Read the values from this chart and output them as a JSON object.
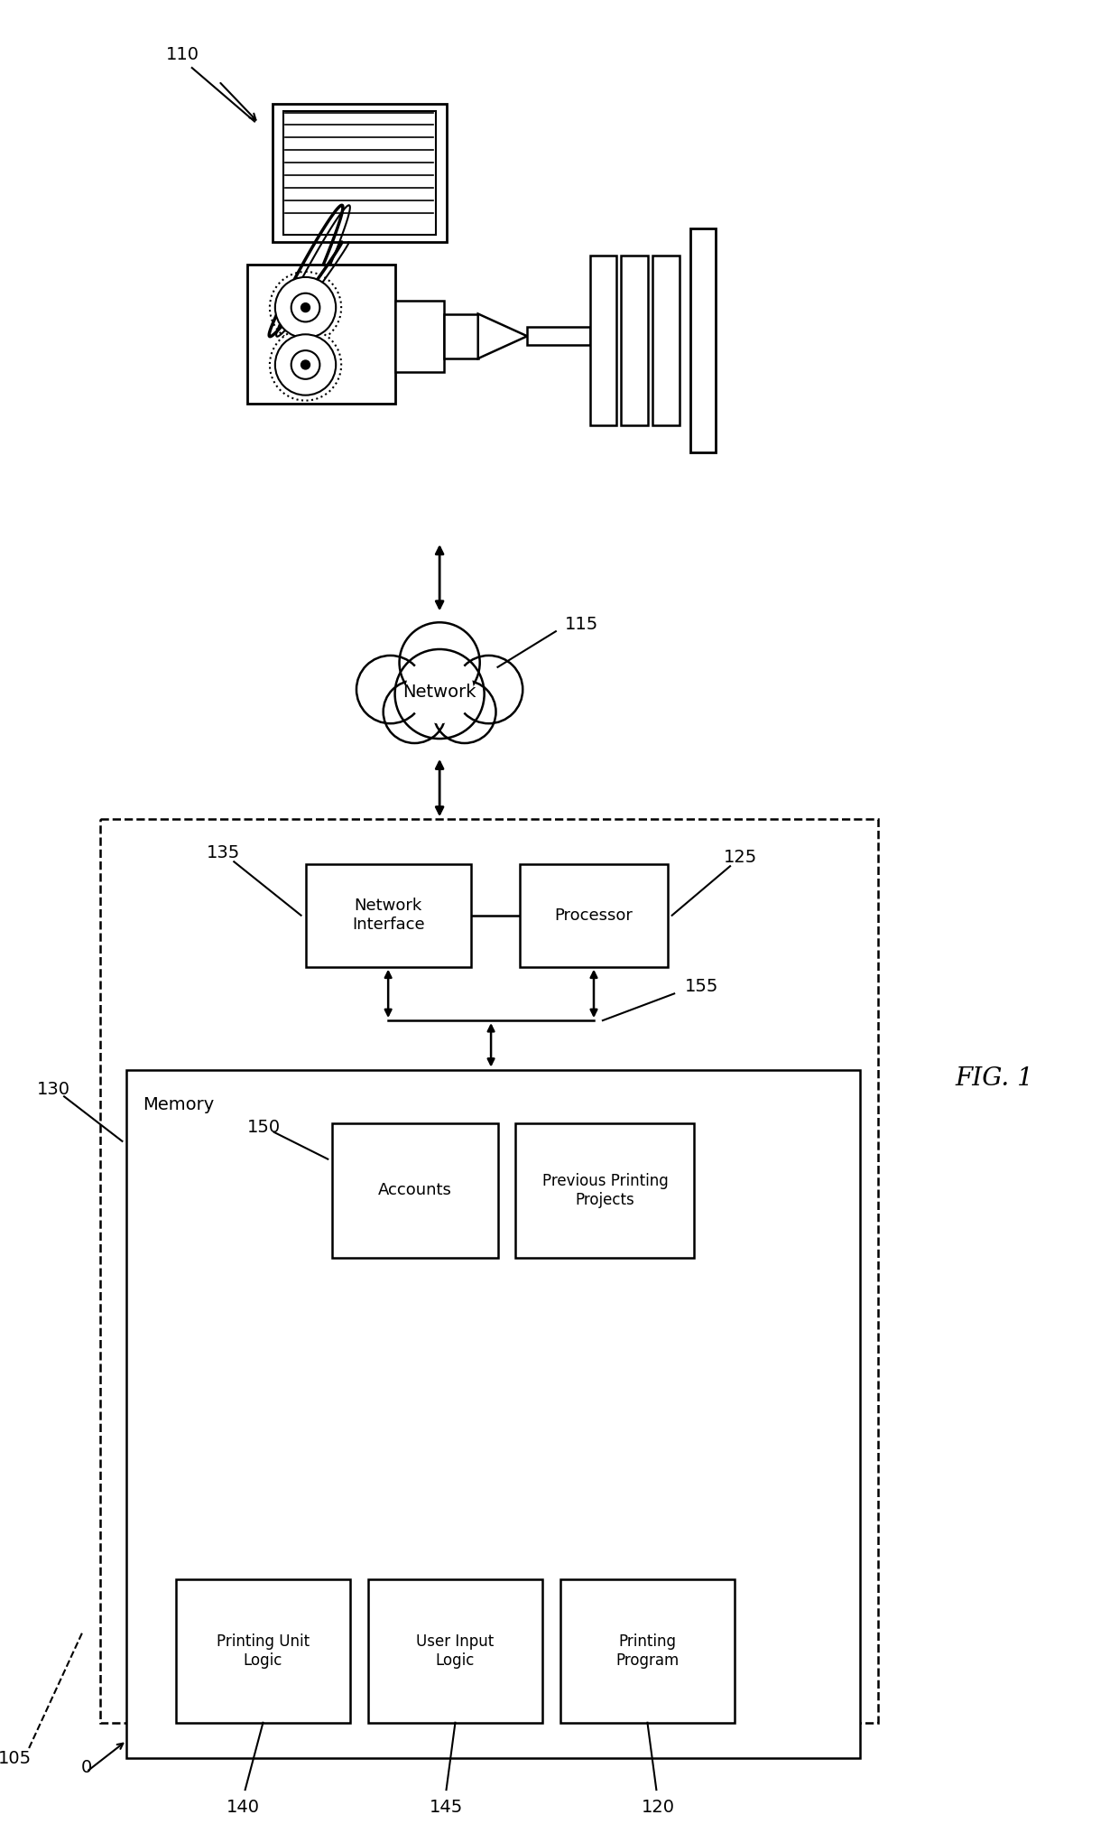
{
  "fig_label": "FIG. 1",
  "bg_color": "#ffffff",
  "line_color": "#000000",
  "label_110": "110",
  "label_115": "115",
  "label_105": "105",
  "label_125": "125",
  "label_130": "130",
  "label_135": "135",
  "label_140": "140",
  "label_145": "145",
  "label_120": "120",
  "label_150": "150",
  "label_155": "155",
  "text_network": "Network",
  "text_network_interface": "Network\nInterface",
  "text_processor": "Processor",
  "text_memory": "Memory",
  "text_accounts": "Accounts",
  "text_prev_printing": "Previous Printing\nProjects",
  "text_printing_unit": "Printing Unit\nLogic",
  "text_user_input": "User Input\nLogic",
  "text_printing_program": "Printing\nProgram"
}
